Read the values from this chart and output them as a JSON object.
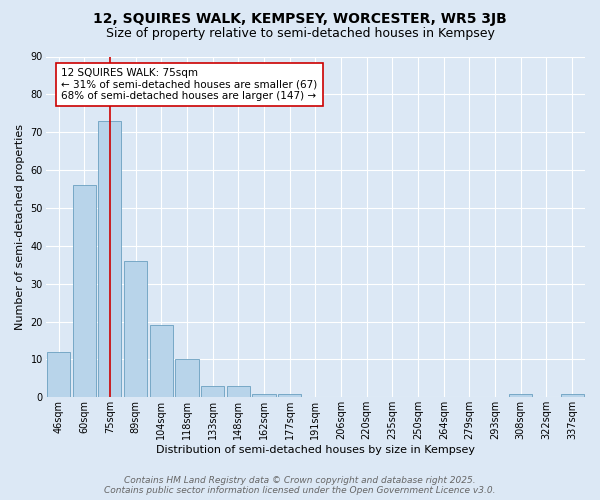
{
  "title": "12, SQUIRES WALK, KEMPSEY, WORCESTER, WR5 3JB",
  "subtitle": "Size of property relative to semi-detached houses in Kempsey",
  "xlabel": "Distribution of semi-detached houses by size in Kempsey",
  "ylabel": "Number of semi-detached properties",
  "categories": [
    "46sqm",
    "60sqm",
    "75sqm",
    "89sqm",
    "104sqm",
    "118sqm",
    "133sqm",
    "148sqm",
    "162sqm",
    "177sqm",
    "191sqm",
    "206sqm",
    "220sqm",
    "235sqm",
    "250sqm",
    "264sqm",
    "279sqm",
    "293sqm",
    "308sqm",
    "322sqm",
    "337sqm"
  ],
  "values": [
    12,
    56,
    73,
    36,
    19,
    10,
    3,
    3,
    1,
    1,
    0,
    0,
    0,
    0,
    0,
    0,
    0,
    0,
    1,
    0,
    1
  ],
  "bar_color": "#b8d4ea",
  "bar_edge_color": "#6a9fc0",
  "highlight_index": 2,
  "highlight_line_color": "#cc0000",
  "annotation_text": "12 SQUIRES WALK: 75sqm\n← 31% of semi-detached houses are smaller (67)\n68% of semi-detached houses are larger (147) →",
  "annotation_box_facecolor": "#ffffff",
  "annotation_box_edgecolor": "#cc0000",
  "ylim": [
    0,
    90
  ],
  "yticks": [
    0,
    10,
    20,
    30,
    40,
    50,
    60,
    70,
    80,
    90
  ],
  "background_color": "#dce8f5",
  "plot_background_color": "#dce8f5",
  "grid_color": "#ffffff",
  "footer_line1": "Contains HM Land Registry data © Crown copyright and database right 2025.",
  "footer_line2": "Contains public sector information licensed under the Open Government Licence v3.0.",
  "title_fontsize": 10,
  "subtitle_fontsize": 9,
  "axis_label_fontsize": 8,
  "tick_fontsize": 7,
  "annotation_fontsize": 7.5,
  "footer_fontsize": 6.5
}
